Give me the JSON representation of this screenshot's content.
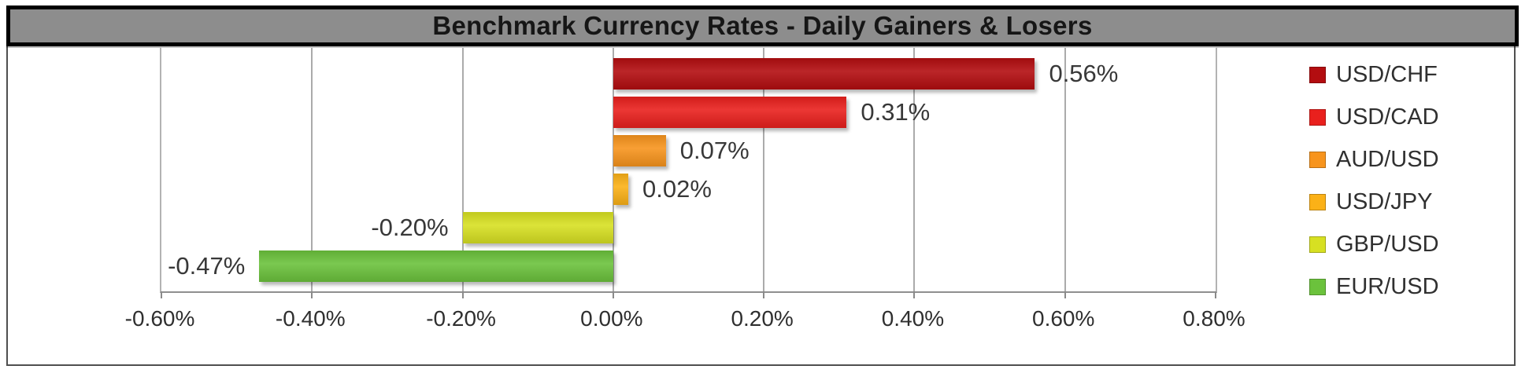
{
  "chart_data": {
    "type": "bar",
    "orientation": "horizontal",
    "title": "Benchmark Currency Rates - Daily Gainers & Losers",
    "series": [
      {
        "name": "USD/CHF",
        "value": 0.56,
        "label": "0.56%",
        "color": "#b30d10"
      },
      {
        "name": "USD/CAD",
        "value": 0.31,
        "label": "0.31%",
        "color": "#e9201d"
      },
      {
        "name": "AUD/USD",
        "value": 0.07,
        "label": "0.07%",
        "color": "#f7941d"
      },
      {
        "name": "USD/JPY",
        "value": 0.02,
        "label": "0.02%",
        "color": "#fbb117"
      },
      {
        "name": "GBP/USD",
        "value": -0.2,
        "label": "-0.20%",
        "color": "#d7e022"
      },
      {
        "name": "EUR/USD",
        "value": -0.47,
        "label": "-0.47%",
        "color": "#6bc23c"
      }
    ],
    "x_axis": {
      "min": -0.6,
      "max": 0.8,
      "step": 0.2,
      "tick_labels": [
        "-0.60%",
        "-0.40%",
        "-0.20%",
        "0.00%",
        "0.20%",
        "0.40%",
        "0.60%",
        "0.80%"
      ]
    },
    "legend_position": "right",
    "grid": true
  },
  "colors": {
    "title_bar_bg": "#8d8d8d",
    "title_text": "#161616",
    "gridline": "#ababab",
    "axis_label_text": "#2f2f2f",
    "data_label_text": "#383838"
  }
}
